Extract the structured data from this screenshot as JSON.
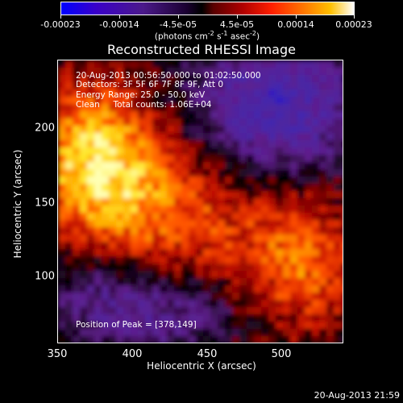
{
  "colorbar": {
    "labels": [
      "-0.00023",
      "-0.00014",
      "-4.5e-05",
      "4.5e-05",
      "0.00014",
      "0.00023"
    ],
    "units_text": "(photons cm",
    "units_sup1": "-2",
    "units_mid": " s",
    "units_sup2": "-1",
    "units_end": " asec",
    "units_sup3": "-2",
    "units_close": ")"
  },
  "title": "Reconstructed RHESSI Image",
  "info": {
    "time": "20-Aug-2013 00:56:50.000 to 01:02:50.000",
    "detectors": "Detectors: 3F 5F 6F 7F 8F 9F, Att 0",
    "energy": "Energy Range: 25.0 - 50.0 keV",
    "clean": "Clean     Total counts: 1.06E+04"
  },
  "peak": "Position of Peak = [378,149]",
  "axes": {
    "xlabel": "Heliocentric X (arcsec)",
    "ylabel": "Heliocentric Y (arcsec)",
    "xticks": [
      "350",
      "400",
      "450",
      "500"
    ],
    "xtick_values": [
      350,
      400,
      450,
      500
    ],
    "yticks": [
      "100",
      "150",
      "200"
    ],
    "ytick_values": [
      100,
      150,
      200
    ],
    "xlim": [
      350,
      540
    ],
    "ylim": [
      55,
      245
    ]
  },
  "timestamp": "20-Aug-2013 21:59"
}
